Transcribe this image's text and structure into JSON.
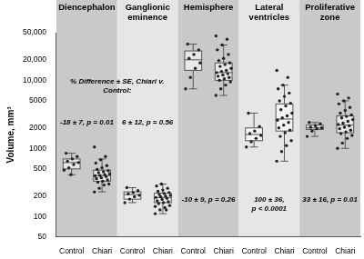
{
  "chart_data": {
    "type": "box",
    "y_label": "Volume, mm³",
    "log": "y",
    "grid": false,
    "color": "#222222",
    "ylim": [
      50,
      50000
    ],
    "yticks": [
      50,
      100,
      200,
      500,
      1000,
      2000,
      5000,
      {
        "value": 10000,
        "label": "10,000"
      },
      {
        "value": 20000,
        "label": "20,000"
      },
      {
        "value": 50000,
        "label": "50,000"
      }
    ],
    "annotation_title": "% Difference ± SE, Chiari v. Control:",
    "panels": [
      {
        "title": "Diencephalon",
        "annotation": "-18 ± 7, p = 0.01",
        "boxes": [
          {
            "category": "Control",
            "min": 410,
            "q1": 500,
            "median": 620,
            "q3": 700,
            "max": 850,
            "points": [
              480,
              520,
              580,
              620,
              650,
              700,
              760,
              850,
              410
            ]
          },
          {
            "category": "Chiari",
            "min": 230,
            "q1": 330,
            "median": 400,
            "q3": 480,
            "max": 700,
            "points": [
              230,
              260,
              290,
              300,
              320,
              330,
              345,
              360,
              370,
              385,
              395,
              400,
              410,
              420,
              440,
              455,
              470,
              490,
              520,
              560,
              610,
              680,
              760,
              1050
            ]
          }
        ]
      },
      {
        "title": "Ganglionic eminence",
        "annotation": "6 ± 12, p = 0.56",
        "boxes": [
          {
            "category": "Control",
            "min": 160,
            "q1": 180,
            "median": 210,
            "q3": 230,
            "max": 265,
            "points": [
              160,
              180,
              195,
              205,
              215,
              225,
              240,
              265
            ]
          },
          {
            "category": "Chiari",
            "min": 110,
            "q1": 160,
            "median": 190,
            "q3": 220,
            "max": 300,
            "points": [
              110,
              125,
              135,
              145,
              155,
              160,
              165,
              170,
              178,
              185,
              190,
              195,
              200,
              205,
              210,
              218,
              225,
              235,
              245,
              260,
              280,
              300,
              125,
              140
            ]
          }
        ]
      },
      {
        "title": "Hemisphere",
        "annotation": "-10 ± 9, p = 0.26",
        "boxes": [
          {
            "category": "Control",
            "min": 7500,
            "q1": 14000,
            "median": 20000,
            "q3": 27000,
            "max": 34000,
            "points": [
              7500,
              11000,
              15000,
              18000,
              21000,
              24000,
              28000,
              34000
            ]
          },
          {
            "category": "Chiari",
            "min": 6000,
            "q1": 10000,
            "median": 13000,
            "q3": 18000,
            "max": 33000,
            "points": [
              6000,
              7500,
              8500,
              9500,
              10000,
              10500,
              11000,
              11500,
              12000,
              12500,
              13000,
              13500,
              14000,
              15000,
              16000,
              17000,
              18000,
              19500,
              21000,
              24000,
              28000,
              33000,
              40000,
              45000
            ]
          }
        ]
      },
      {
        "title": "Lateral ventricles",
        "annotation": "100 ± 36, p < 0.0001",
        "boxes": [
          {
            "category": "Control",
            "min": 1050,
            "q1": 1300,
            "median": 1600,
            "q3": 2000,
            "max": 3300,
            "points": [
              1050,
              1250,
              1400,
              1550,
              1650,
              1800,
              2100,
              3300
            ]
          },
          {
            "category": "Chiari",
            "min": 650,
            "q1": 1800,
            "median": 2700,
            "q3": 4500,
            "max": 8500,
            "points": [
              650,
              900,
              1100,
              1300,
              1500,
              1700,
              1850,
              2000,
              2200,
              2400,
              2600,
              2800,
              3000,
              3300,
              3700,
              4200,
              4600,
              5000,
              5800,
              6500,
              7500,
              8500,
              11000,
              14000
            ]
          }
        ]
      },
      {
        "title": "Proliferative zone",
        "annotation": "33 ± 16, p = 0.01",
        "boxes": [
          {
            "category": "Control",
            "min": 1500,
            "q1": 1900,
            "median": 2000,
            "q3": 2200,
            "max": 2400,
            "points": [
              1500,
              1800,
              1950,
              2000,
              2050,
              2150,
              2300,
              2400
            ]
          },
          {
            "category": "Chiari",
            "min": 1000,
            "q1": 1700,
            "median": 2200,
            "q3": 3000,
            "max": 5000,
            "points": [
              1000,
              1200,
              1400,
              1550,
              1650,
              1750,
              1850,
              1950,
              2050,
              2150,
              2250,
              2350,
              2500,
              2650,
              2800,
              2950,
              3100,
              3300,
              3600,
              4000,
              4500,
              5000,
              5500,
              6300
            ]
          }
        ]
      }
    ]
  }
}
